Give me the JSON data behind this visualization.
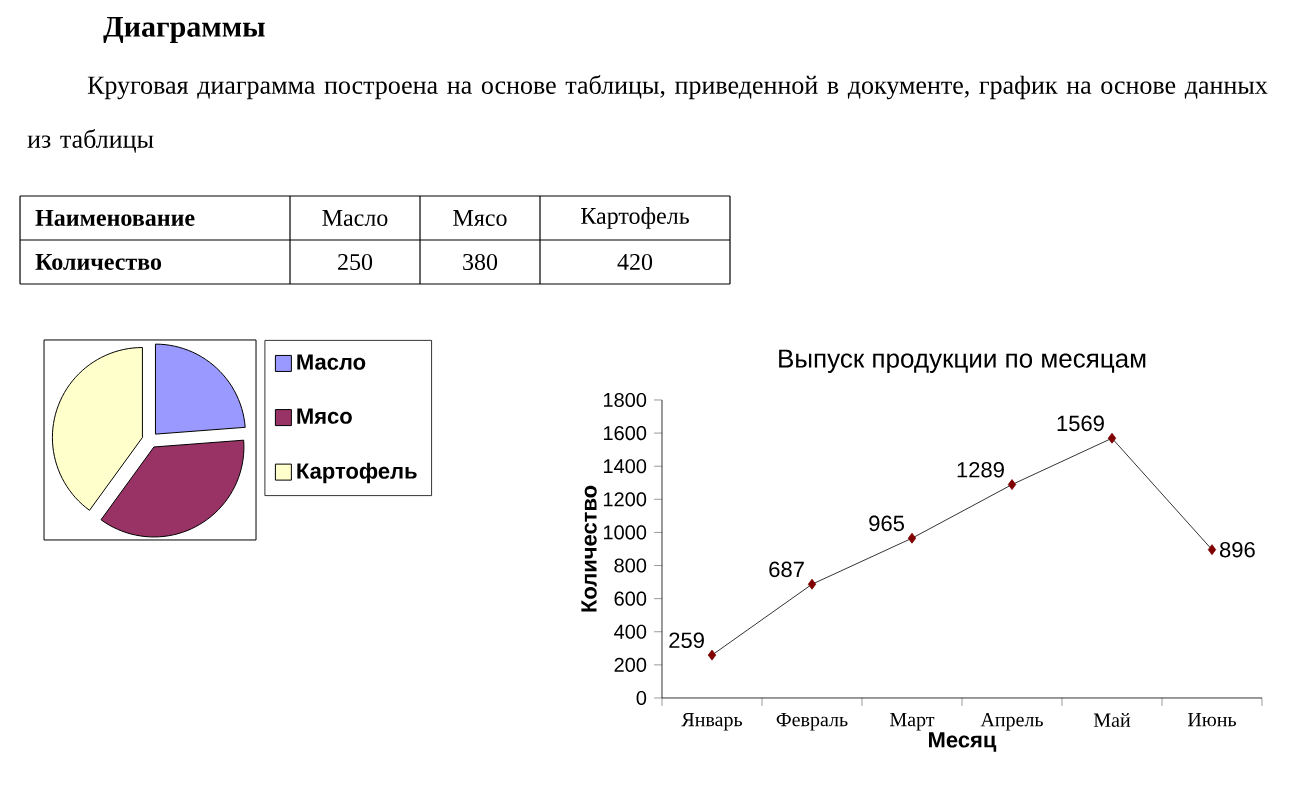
{
  "chart_data": [
    {
      "type": "other",
      "title": "Диаграммы",
      "subtitle": "Круговая диаграмма построена на основе таблицы, приведенной в документе, график на основе данных из таблицы",
      "annotations": [
        "Наименование",
        "Количество"
      ],
      "categories": [
        "Масло",
        "Мясо",
        "Картофель"
      ],
      "values": [
        250,
        380,
        420
      ],
      "value_labels": [
        "250",
        "380",
        "420"
      ]
    },
    {
      "type": "pie",
      "categories": [
        "Масло",
        "Мясо",
        "Картофель"
      ],
      "values": [
        23.8,
        36.2,
        40.0
      ],
      "colors": [
        "#9999ff",
        "#993366",
        "#ffffcc"
      ],
      "legend": "right"
    },
    {
      "type": "line",
      "title": "Выпуск продукции по месяцам",
      "xlabel": "Месяц",
      "ylabel": "Количество",
      "categories": [
        "Январь",
        "Февраль",
        "Март",
        "Апрель",
        "Май",
        "Июнь"
      ],
      "series": [
        {
          "color": "#800000",
          "values": [
            259,
            687,
            965,
            1289,
            1569,
            896
          ]
        }
      ],
      "ylim": [
        0,
        1800
      ],
      "yticks": [
        0,
        200,
        400,
        600,
        800,
        1000,
        1200,
        1400,
        1600,
        1800
      ],
      "marker": "diamond",
      "data_labels": true
    }
  ]
}
